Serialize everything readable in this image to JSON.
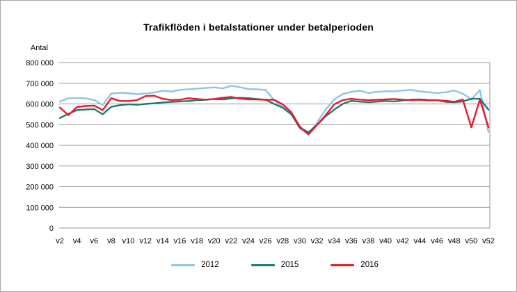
{
  "window": {
    "background": "#ffffff",
    "border_color": "#a6a6a6",
    "grid_color": "#999999",
    "text_color": "#000000"
  },
  "chart_data": {
    "type": "line",
    "title": "Trafikflöden i betalstationer under betalperioden",
    "ylabel": "Antal",
    "xlabel": "",
    "ylim": [
      0,
      800000
    ],
    "y_tick_interval": 100000,
    "grid": true,
    "legend_position": "bottom",
    "y_tick_labels": [
      "800 000",
      "700 000",
      "600 000",
      "500 000",
      "400 000",
      "300 000",
      "200 000",
      "100 000",
      "0"
    ],
    "x_tick_labels": [
      "v2",
      "v4",
      "v6",
      "v8",
      "v10",
      "v12",
      "v14",
      "v16",
      "v18",
      "v20",
      "v22",
      "v24",
      "v26",
      "v28",
      "v30",
      "v32",
      "v34",
      "v36",
      "v38",
      "v40",
      "v42",
      "v44",
      "v46",
      "v48",
      "v50",
      "v52"
    ],
    "categories": [
      "v2",
      "v3",
      "v4",
      "v5",
      "v6",
      "v7",
      "v8",
      "v9",
      "v10",
      "v11",
      "v12",
      "v13",
      "v14",
      "v15",
      "v16",
      "v17",
      "v18",
      "v19",
      "v20",
      "v21",
      "v22",
      "v23",
      "v24",
      "v25",
      "v26",
      "v27",
      "v28",
      "v29",
      "v30",
      "v31",
      "v32",
      "v33",
      "v34",
      "v35",
      "v36",
      "v37",
      "v38",
      "v39",
      "v40",
      "v41",
      "v42",
      "v43",
      "v44",
      "v45",
      "v46",
      "v47",
      "v48",
      "v49",
      "v50",
      "v51",
      "v52"
    ],
    "series": [
      {
        "name": "2012",
        "color": "#8FC4E9",
        "values": [
          612000,
          627000,
          629000,
          627000,
          619000,
          595000,
          650000,
          654000,
          652000,
          647000,
          650000,
          655000,
          664000,
          660000,
          668000,
          671000,
          674000,
          677000,
          680000,
          675000,
          688000,
          681000,
          672000,
          671000,
          668000,
          618000,
          585000,
          555000,
          480000,
          453000,
          510000,
          572000,
          622000,
          648000,
          658000,
          664000,
          653000,
          658000,
          662000,
          661000,
          665000,
          668000,
          661000,
          656000,
          653000,
          656000,
          665000,
          650000,
          622000,
          667000,
          465000
        ]
      },
      {
        "name": "2015",
        "color": "#1E7A6E",
        "values": [
          532000,
          552000,
          570000,
          573000,
          575000,
          550000,
          586000,
          594000,
          598000,
          596000,
          600000,
          603000,
          607000,
          610000,
          612000,
          614000,
          618000,
          620000,
          624000,
          622000,
          627000,
          630000,
          628000,
          624000,
          620000,
          600000,
          582000,
          550000,
          485000,
          463000,
          498000,
          540000,
          572000,
          600000,
          615000,
          611000,
          608000,
          611000,
          614000,
          612000,
          617000,
          621000,
          622000,
          619000,
          618000,
          610000,
          608000,
          612000,
          625000,
          625000,
          572000
        ]
      },
      {
        "name": "2016",
        "color": "#E8192C",
        "values": [
          583000,
          546000,
          585000,
          590000,
          592000,
          570000,
          628000,
          614000,
          614000,
          618000,
          638000,
          640000,
          625000,
          619000,
          620000,
          628000,
          624000,
          621000,
          624000,
          630000,
          634000,
          626000,
          622000,
          622000,
          620000,
          620000,
          598000,
          560000,
          490000,
          453000,
          498000,
          545000,
          598000,
          618000,
          625000,
          621000,
          618000,
          620000,
          622000,
          624000,
          621000,
          619000,
          620000,
          617000,
          618000,
          615000,
          610000,
          622000,
          487000,
          622000,
          487000
        ]
      }
    ]
  }
}
